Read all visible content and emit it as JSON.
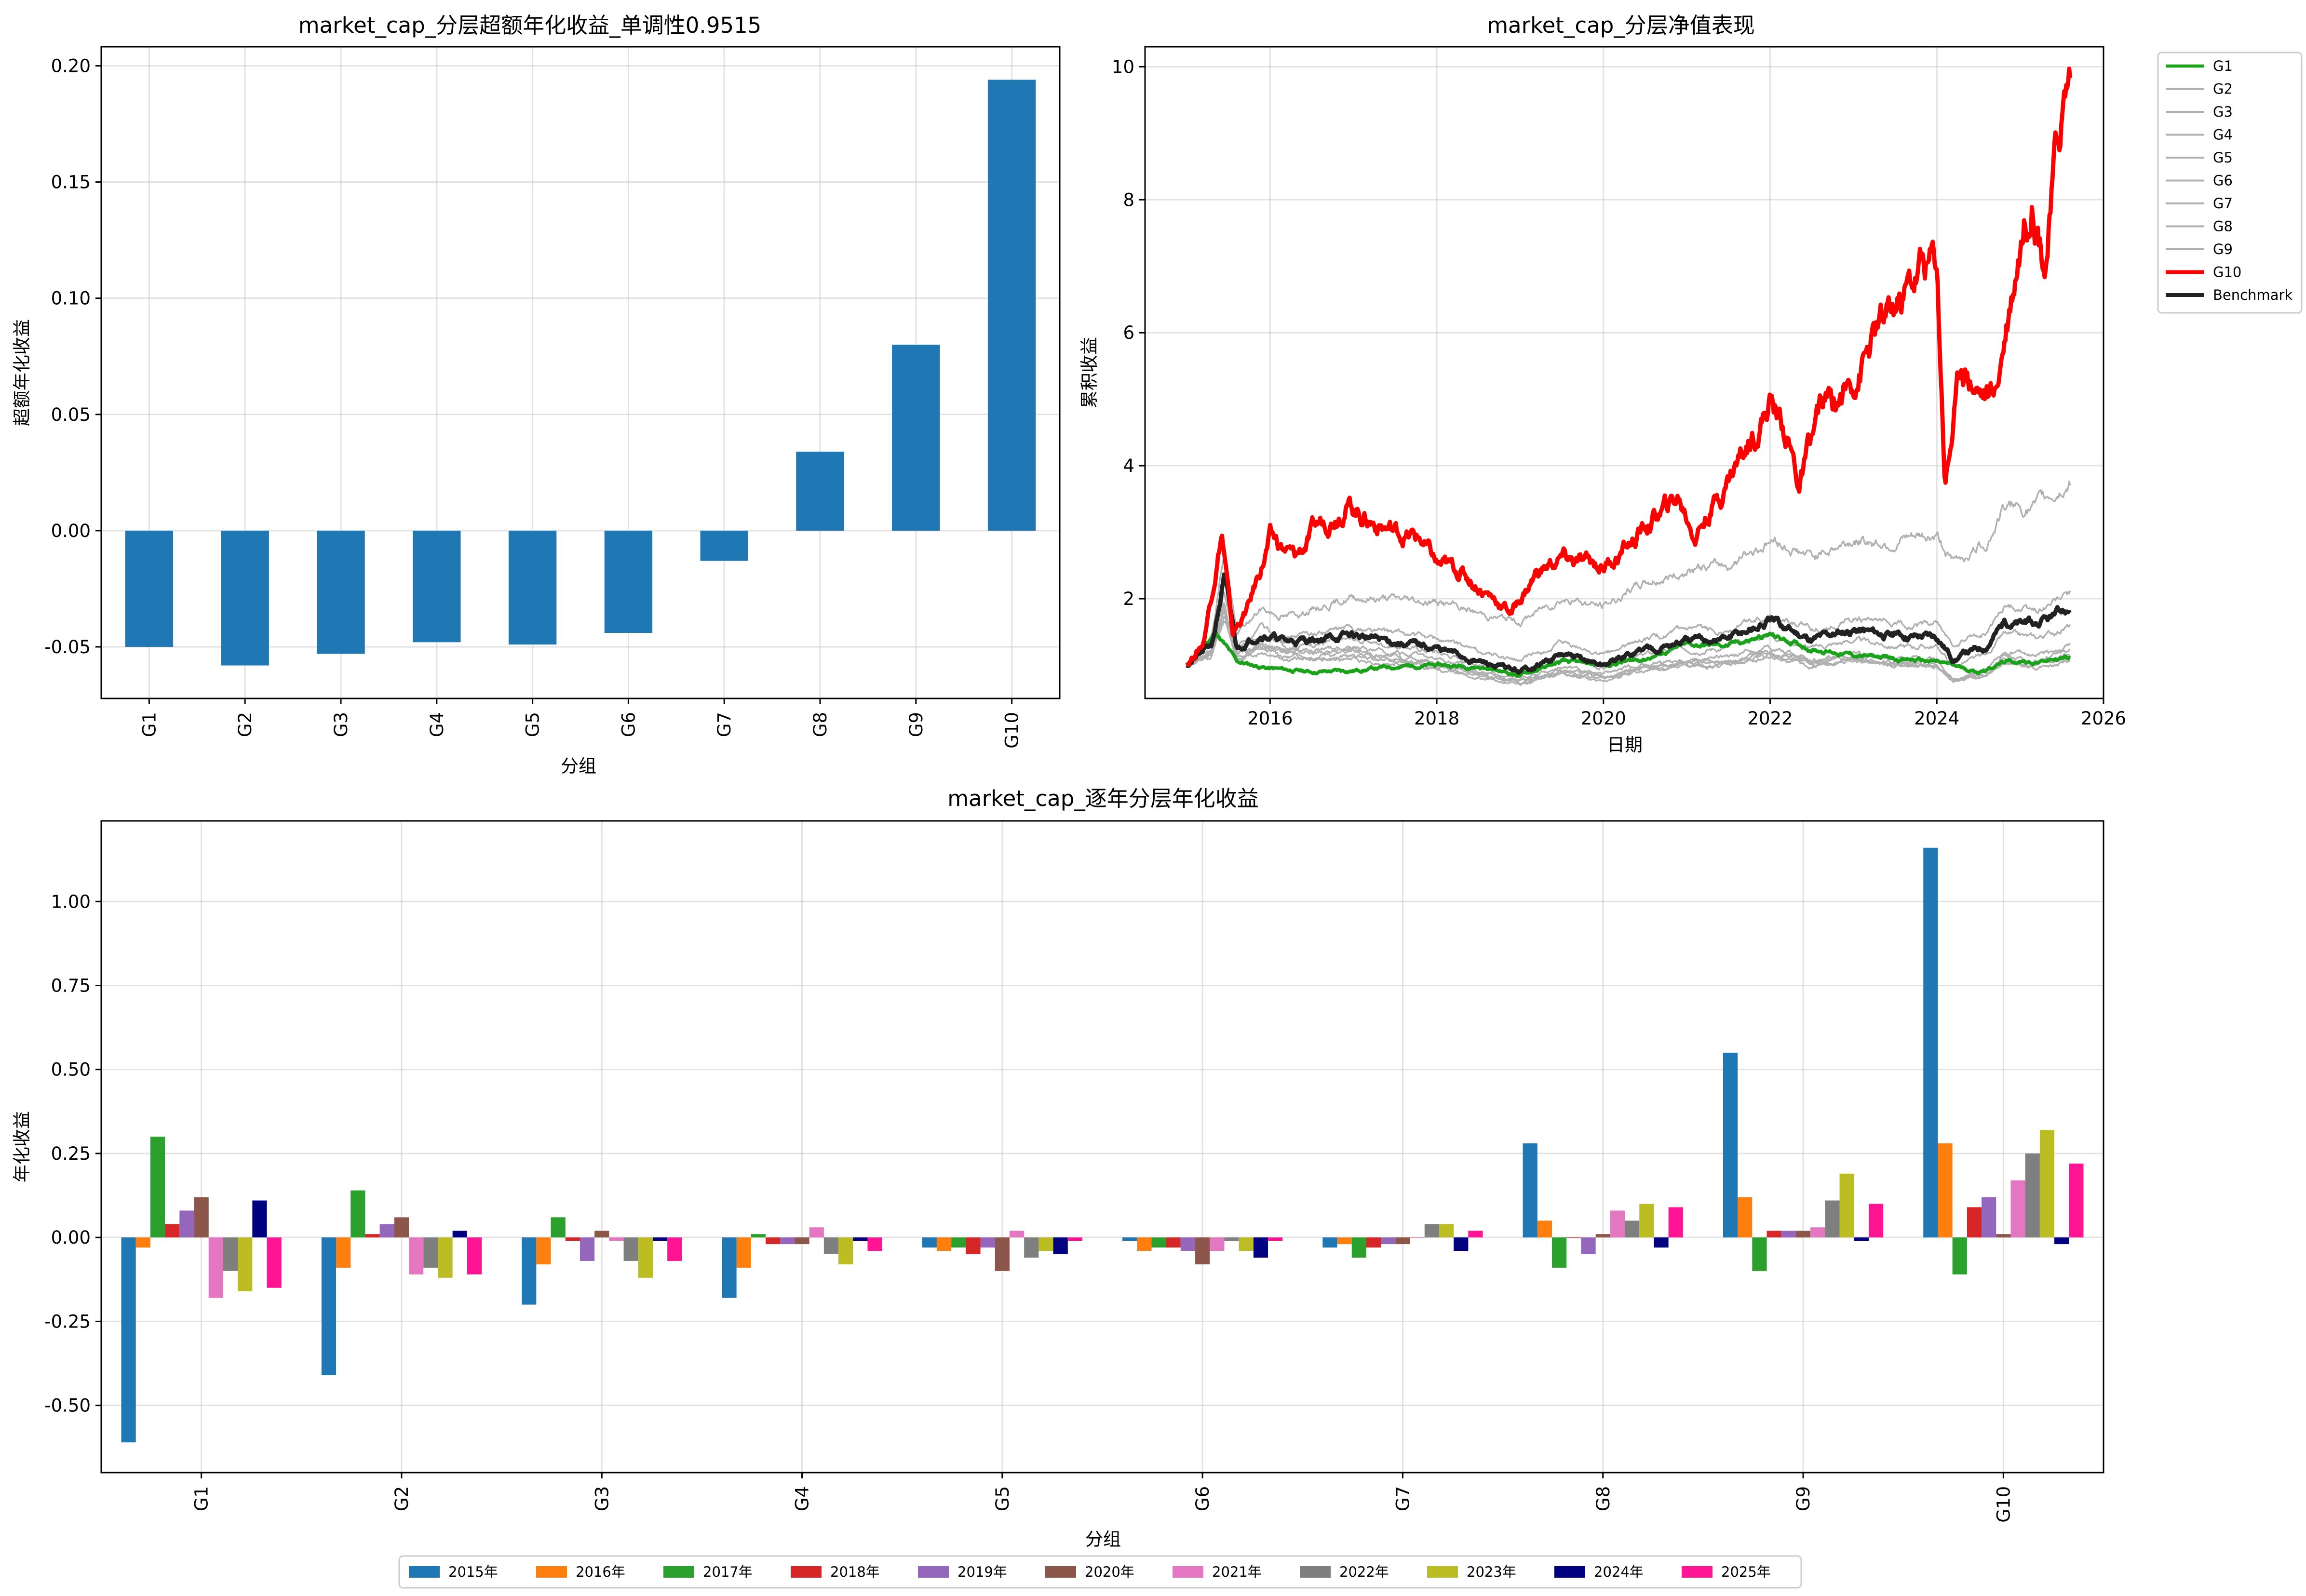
{
  "chart_data": [
    {
      "type": "bar",
      "title": "market_cap_分层超额年化收益_单调性0.9515",
      "xlabel": "分组",
      "ylabel": "超额年化收益",
      "categories": [
        "G1",
        "G2",
        "G3",
        "G4",
        "G5",
        "G6",
        "G7",
        "G8",
        "G9",
        "G10"
      ],
      "values": [
        -0.05,
        -0.058,
        -0.053,
        -0.048,
        -0.049,
        -0.044,
        -0.013,
        0.034,
        0.08,
        0.194
      ],
      "ylim": [
        -0.0722,
        0.2082
      ],
      "yticks": [
        -0.05,
        0.0,
        0.05,
        0.1,
        0.15,
        0.2
      ],
      "ytick_labels": [
        "-0.05",
        "0.00",
        "0.05",
        "0.10",
        "0.15",
        "0.20"
      ],
      "bar_color": "#1f77b4",
      "grid": true
    },
    {
      "type": "line",
      "title": "market_cap_分层净值表现",
      "xlabel": "日期",
      "ylabel": "累积收益",
      "xlim": [
        2014.5,
        2026.0
      ],
      "ylim": [
        0.5,
        10.3
      ],
      "xticks": [
        2016,
        2018,
        2020,
        2022,
        2024,
        2026
      ],
      "xtick_labels": [
        "2016",
        "2018",
        "2020",
        "2022",
        "2024",
        "2026"
      ],
      "yticks": [
        2,
        4,
        6,
        8,
        10
      ],
      "ytick_labels": [
        "2",
        "4",
        "6",
        "8",
        "10"
      ],
      "legend_position": "outside-top-right",
      "grid": true,
      "series": [
        {
          "name": "G1",
          "color": "#1aa31a",
          "width": 3.2,
          "end": 1.12,
          "scale": 0.6,
          "bias": -0.05,
          "seed": 11
        },
        {
          "name": "G2",
          "color": "#b0b0b0",
          "width": 1.5,
          "end": 1.02,
          "scale": 0.55,
          "bias": -0.08,
          "seed": 12
        },
        {
          "name": "G3",
          "color": "#b0b0b0",
          "width": 1.5,
          "end": 1.08,
          "scale": 0.6,
          "bias": -0.06,
          "seed": 13
        },
        {
          "name": "G4",
          "color": "#b0b0b0",
          "width": 1.5,
          "end": 1.15,
          "scale": 0.65,
          "bias": -0.04,
          "seed": 14
        },
        {
          "name": "G5",
          "color": "#b0b0b0",
          "width": 1.5,
          "end": 1.2,
          "scale": 0.7,
          "bias": -0.03,
          "seed": 15
        },
        {
          "name": "G6",
          "color": "#b0b0b0",
          "width": 1.5,
          "end": 1.3,
          "scale": 0.75,
          "bias": -0.01,
          "seed": 16
        },
        {
          "name": "G7",
          "color": "#b0b0b0",
          "width": 1.5,
          "end": 1.6,
          "scale": 0.85,
          "bias": 0.02,
          "seed": 17
        },
        {
          "name": "G8",
          "color": "#b0b0b0",
          "width": 1.5,
          "end": 2.1,
          "scale": 1.0,
          "bias": 0.07,
          "seed": 18
        },
        {
          "name": "G9",
          "color": "#b0b0b0",
          "width": 1.5,
          "end": 3.8,
          "scale": 1.25,
          "bias": 0.14,
          "seed": 19
        },
        {
          "name": "G10",
          "color": "#ff0000",
          "width": 4.0,
          "end": 10.0,
          "scale": 1.6,
          "bias": 0.3,
          "seed": 20
        },
        {
          "name": "Benchmark",
          "color": "#222222",
          "width": 4.0,
          "end": 1.82,
          "scale": 0.9,
          "bias": 0.05,
          "seed": 21
        }
      ],
      "g10_points": [
        [
          2015.0,
          1.0
        ],
        [
          2015.2,
          1.35
        ],
        [
          2015.42,
          3.05
        ],
        [
          2015.55,
          1.45
        ],
        [
          2015.75,
          1.9
        ],
        [
          2016.0,
          2.9
        ],
        [
          2016.3,
          2.6
        ],
        [
          2016.6,
          3.1
        ],
        [
          2016.9,
          3.5
        ],
        [
          2017.2,
          3.2
        ],
        [
          2017.5,
          3.0
        ],
        [
          2017.8,
          2.9
        ],
        [
          2018.0,
          2.5
        ],
        [
          2018.3,
          2.4
        ],
        [
          2018.6,
          2.1
        ],
        [
          2018.9,
          1.8
        ],
        [
          2019.2,
          2.4
        ],
        [
          2019.5,
          2.6
        ],
        [
          2019.8,
          2.5
        ],
        [
          2020.0,
          2.5
        ],
        [
          2020.3,
          2.8
        ],
        [
          2020.6,
          3.2
        ],
        [
          2020.9,
          3.5
        ],
        [
          2021.1,
          3.0
        ],
        [
          2021.4,
          3.6
        ],
        [
          2021.7,
          4.3
        ],
        [
          2022.0,
          5.0
        ],
        [
          2022.2,
          4.5
        ],
        [
          2022.35,
          3.7
        ],
        [
          2022.6,
          4.8
        ],
        [
          2022.9,
          5.1
        ],
        [
          2023.2,
          5.8
        ],
        [
          2023.5,
          6.3
        ],
        [
          2023.8,
          7.0
        ],
        [
          2024.0,
          7.1
        ],
        [
          2024.1,
          3.8
        ],
        [
          2024.3,
          5.6
        ],
        [
          2024.5,
          5.2
        ],
        [
          2024.7,
          5.0
        ],
        [
          2024.8,
          5.9
        ],
        [
          2025.0,
          7.5
        ],
        [
          2025.15,
          8.3
        ],
        [
          2025.3,
          7.2
        ],
        [
          2025.5,
          9.3
        ],
        [
          2025.6,
          9.95
        ]
      ],
      "bench_points": [
        [
          2015.0,
          1.0
        ],
        [
          2015.3,
          1.3
        ],
        [
          2015.45,
          2.3
        ],
        [
          2015.6,
          1.25
        ],
        [
          2015.9,
          1.5
        ],
        [
          2016.2,
          1.35
        ],
        [
          2016.6,
          1.4
        ],
        [
          2017.0,
          1.45
        ],
        [
          2017.5,
          1.35
        ],
        [
          2018.0,
          1.25
        ],
        [
          2018.5,
          1.05
        ],
        [
          2019.0,
          0.9
        ],
        [
          2019.5,
          1.15
        ],
        [
          2020.0,
          1.0
        ],
        [
          2020.5,
          1.25
        ],
        [
          2021.0,
          1.35
        ],
        [
          2021.5,
          1.4
        ],
        [
          2022.0,
          1.65
        ],
        [
          2022.5,
          1.4
        ],
        [
          2023.0,
          1.55
        ],
        [
          2023.5,
          1.45
        ],
        [
          2024.0,
          1.45
        ],
        [
          2024.2,
          1.1
        ],
        [
          2024.6,
          1.3
        ],
        [
          2024.8,
          1.65
        ],
        [
          2025.2,
          1.6
        ],
        [
          2025.6,
          1.82
        ]
      ],
      "g1_points": [
        [
          2015.0,
          1.0
        ],
        [
          2015.35,
          1.5
        ],
        [
          2015.6,
          1.05
        ],
        [
          2016.0,
          0.95
        ],
        [
          2016.5,
          0.9
        ],
        [
          2017.0,
          0.92
        ],
        [
          2017.5,
          0.98
        ],
        [
          2018.0,
          1.0
        ],
        [
          2018.5,
          0.98
        ],
        [
          2019.0,
          0.85
        ],
        [
          2019.5,
          1.05
        ],
        [
          2020.0,
          1.0
        ],
        [
          2020.5,
          1.1
        ],
        [
          2021.0,
          1.3
        ],
        [
          2021.5,
          1.3
        ],
        [
          2022.0,
          1.45
        ],
        [
          2022.5,
          1.25
        ],
        [
          2023.0,
          1.15
        ],
        [
          2023.5,
          1.1
        ],
        [
          2024.0,
          1.05
        ],
        [
          2024.5,
          0.9
        ],
        [
          2024.8,
          1.05
        ],
        [
          2025.2,
          1.05
        ],
        [
          2025.6,
          1.12
        ]
      ]
    },
    {
      "type": "bar",
      "title": "market_cap_逐年分层年化收益",
      "xlabel": "分组",
      "ylabel": "年化收益",
      "categories": [
        "G1",
        "G2",
        "G3",
        "G4",
        "G5",
        "G6",
        "G7",
        "G8",
        "G9",
        "G10"
      ],
      "ylim": [
        -0.7,
        1.24
      ],
      "yticks": [
        -0.5,
        -0.25,
        0.0,
        0.25,
        0.5,
        0.75,
        1.0
      ],
      "ytick_labels": [
        "-0.50",
        "-0.25",
        "0.00",
        "0.25",
        "0.50",
        "0.75",
        "1.00"
      ],
      "legend_position": "bottom-center",
      "grid": true,
      "series": [
        {
          "name": "2015年",
          "color": "#1f77b4",
          "values": [
            -0.61,
            -0.41,
            -0.2,
            -0.18,
            -0.03,
            -0.01,
            -0.03,
            0.28,
            0.55,
            1.16
          ]
        },
        {
          "name": "2016年",
          "color": "#ff7f0e",
          "values": [
            -0.03,
            -0.09,
            -0.08,
            -0.09,
            -0.04,
            -0.04,
            -0.02,
            0.05,
            0.12,
            0.28
          ]
        },
        {
          "name": "2017年",
          "color": "#2ca02c",
          "values": [
            0.3,
            0.14,
            0.06,
            0.01,
            -0.03,
            -0.03,
            -0.06,
            -0.09,
            -0.1,
            -0.11
          ]
        },
        {
          "name": "2018年",
          "color": "#d62728",
          "values": [
            0.04,
            0.01,
            -0.01,
            -0.02,
            -0.05,
            -0.03,
            -0.03,
            0.0,
            0.02,
            0.09
          ]
        },
        {
          "name": "2019年",
          "color": "#9467bd",
          "values": [
            0.08,
            0.04,
            -0.07,
            -0.02,
            -0.03,
            -0.04,
            -0.02,
            -0.05,
            0.02,
            0.12
          ]
        },
        {
          "name": "2020年",
          "color": "#8c564b",
          "values": [
            0.12,
            0.06,
            0.02,
            -0.02,
            -0.1,
            -0.08,
            -0.02,
            0.01,
            0.02,
            0.01
          ]
        },
        {
          "name": "2021年",
          "color": "#e377c2",
          "values": [
            -0.18,
            -0.11,
            -0.01,
            0.03,
            0.02,
            -0.04,
            0.0,
            0.08,
            0.03,
            0.17
          ]
        },
        {
          "name": "2022年",
          "color": "#7f7f7f",
          "values": [
            -0.1,
            -0.09,
            -0.07,
            -0.05,
            -0.06,
            -0.01,
            0.04,
            0.05,
            0.11,
            0.25
          ]
        },
        {
          "name": "2023年",
          "color": "#bcbd22",
          "values": [
            -0.16,
            -0.12,
            -0.12,
            -0.08,
            -0.04,
            -0.04,
            0.04,
            0.1,
            0.19,
            0.32
          ]
        },
        {
          "name": "2024年",
          "color": "#000080",
          "values": [
            0.11,
            0.02,
            -0.01,
            -0.01,
            -0.05,
            -0.06,
            -0.04,
            -0.03,
            -0.01,
            -0.02
          ]
        },
        {
          "name": "2025年",
          "color": "#ff1493",
          "values": [
            -0.15,
            -0.11,
            -0.07,
            -0.04,
            -0.01,
            -0.01,
            0.02,
            0.09,
            0.1,
            0.22
          ]
        }
      ]
    }
  ]
}
